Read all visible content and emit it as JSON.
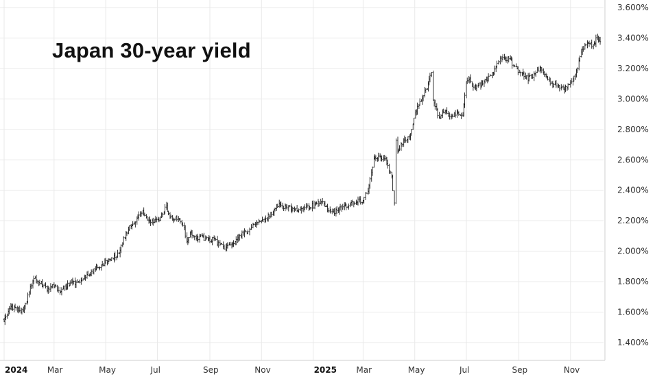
{
  "chart_data": {
    "type": "line",
    "style": "ohlc-bars",
    "title": "Japan 30-year yield",
    "xlabel": "",
    "ylabel": "",
    "x_ticks": [
      {
        "label": "2024",
        "date": "2024-01-02",
        "bold": true
      },
      {
        "label": "Mar",
        "date": "2024-03-01",
        "bold": false
      },
      {
        "label": "May",
        "date": "2024-05-01",
        "bold": false
      },
      {
        "label": "Jul",
        "date": "2024-07-01",
        "bold": false
      },
      {
        "label": "Sep",
        "date": "2024-09-01",
        "bold": false
      },
      {
        "label": "Nov",
        "date": "2024-11-01",
        "bold": false
      },
      {
        "label": "2025",
        "date": "2025-01-01",
        "bold": true
      },
      {
        "label": "Mar",
        "date": "2025-03-01",
        "bold": false
      },
      {
        "label": "May",
        "date": "2025-05-01",
        "bold": false
      },
      {
        "label": "Jul",
        "date": "2025-07-01",
        "bold": false
      },
      {
        "label": "Sep",
        "date": "2025-09-01",
        "bold": false
      },
      {
        "label": "Nov",
        "date": "2025-11-01",
        "bold": false
      }
    ],
    "y_ticks": [
      "1.400%",
      "1.600%",
      "1.800%",
      "2.000%",
      "2.200%",
      "2.400%",
      "2.600%",
      "2.800%",
      "3.000%",
      "3.200%",
      "3.400%",
      "3.600%"
    ],
    "ylim": [
      1.4,
      3.6
    ],
    "xlim": [
      "2024-01-02",
      "2025-12-10"
    ],
    "grid": true,
    "legend": "none",
    "colors": {
      "bars": "#1a1a1a",
      "grid": "#e9e9e9",
      "axis": "#cccccc"
    },
    "series": [
      {
        "x": [
          "2024-01-02",
          "2024-01-10",
          "2024-01-18",
          "2024-01-25",
          "2024-02-01",
          "2024-02-08",
          "2024-02-15",
          "2024-02-22",
          "2024-03-01",
          "2024-03-08",
          "2024-03-15",
          "2024-03-22",
          "2024-03-29",
          "2024-04-05",
          "2024-04-12",
          "2024-04-19",
          "2024-04-26",
          "2024-05-03",
          "2024-05-10",
          "2024-05-17",
          "2024-05-24",
          "2024-05-31",
          "2024-06-07",
          "2024-06-14",
          "2024-06-21",
          "2024-06-28",
          "2024-07-05",
          "2024-07-12",
          "2024-07-19",
          "2024-07-26",
          "2024-08-02",
          "2024-08-05",
          "2024-08-09",
          "2024-08-16",
          "2024-08-23",
          "2024-08-30",
          "2024-09-06",
          "2024-09-13",
          "2024-09-20",
          "2024-09-27",
          "2024-10-04",
          "2024-10-11",
          "2024-10-18",
          "2024-10-25",
          "2024-11-01",
          "2024-11-08",
          "2024-11-15",
          "2024-11-22",
          "2024-11-29",
          "2024-12-06",
          "2024-12-13",
          "2024-12-20",
          "2024-12-27",
          "2025-01-03",
          "2025-01-10",
          "2025-01-17",
          "2025-01-24",
          "2025-01-31",
          "2025-02-07",
          "2025-02-14",
          "2025-02-21",
          "2025-02-28",
          "2025-03-07",
          "2025-03-14",
          "2025-03-21",
          "2025-03-28",
          "2025-04-04",
          "2025-04-07",
          "2025-04-09",
          "2025-04-11",
          "2025-04-18",
          "2025-04-25",
          "2025-05-02",
          "2025-05-09",
          "2025-05-16",
          "2025-05-21",
          "2025-05-23",
          "2025-05-30",
          "2025-06-06",
          "2025-06-13",
          "2025-06-20",
          "2025-06-27",
          "2025-07-01",
          "2025-07-04",
          "2025-07-11",
          "2025-07-18",
          "2025-07-25",
          "2025-08-01",
          "2025-08-08",
          "2025-08-15",
          "2025-08-22",
          "2025-08-29",
          "2025-09-05",
          "2025-09-12",
          "2025-09-19",
          "2025-09-26",
          "2025-10-03",
          "2025-10-10",
          "2025-10-17",
          "2025-10-24",
          "2025-10-31",
          "2025-11-07",
          "2025-11-14",
          "2025-11-21",
          "2025-11-28",
          "2025-12-03",
          "2025-12-08"
        ],
        "values": [
          1.55,
          1.63,
          1.62,
          1.6,
          1.74,
          1.83,
          1.79,
          1.75,
          1.77,
          1.74,
          1.77,
          1.8,
          1.79,
          1.82,
          1.85,
          1.88,
          1.91,
          1.93,
          1.96,
          1.99,
          2.1,
          2.17,
          2.21,
          2.26,
          2.19,
          2.2,
          2.22,
          2.29,
          2.2,
          2.22,
          2.14,
          2.05,
          2.12,
          2.08,
          2.1,
          2.07,
          2.08,
          2.04,
          2.02,
          2.05,
          2.08,
          2.12,
          2.14,
          2.18,
          2.19,
          2.22,
          2.26,
          2.3,
          2.29,
          2.28,
          2.27,
          2.28,
          2.29,
          2.3,
          2.33,
          2.28,
          2.25,
          2.27,
          2.29,
          2.3,
          2.33,
          2.33,
          2.4,
          2.6,
          2.62,
          2.61,
          2.5,
          2.32,
          2.72,
          2.66,
          2.72,
          2.75,
          2.9,
          3.0,
          3.07,
          3.18,
          2.98,
          2.88,
          2.92,
          2.88,
          2.9,
          2.89,
          3.1,
          3.14,
          3.08,
          3.1,
          3.13,
          3.16,
          3.25,
          3.27,
          3.26,
          3.2,
          3.17,
          3.13,
          3.16,
          3.2,
          3.15,
          3.1,
          3.08,
          3.06,
          3.09,
          3.15,
          3.3,
          3.37,
          3.35,
          3.4,
          3.36
        ]
      }
    ]
  }
}
